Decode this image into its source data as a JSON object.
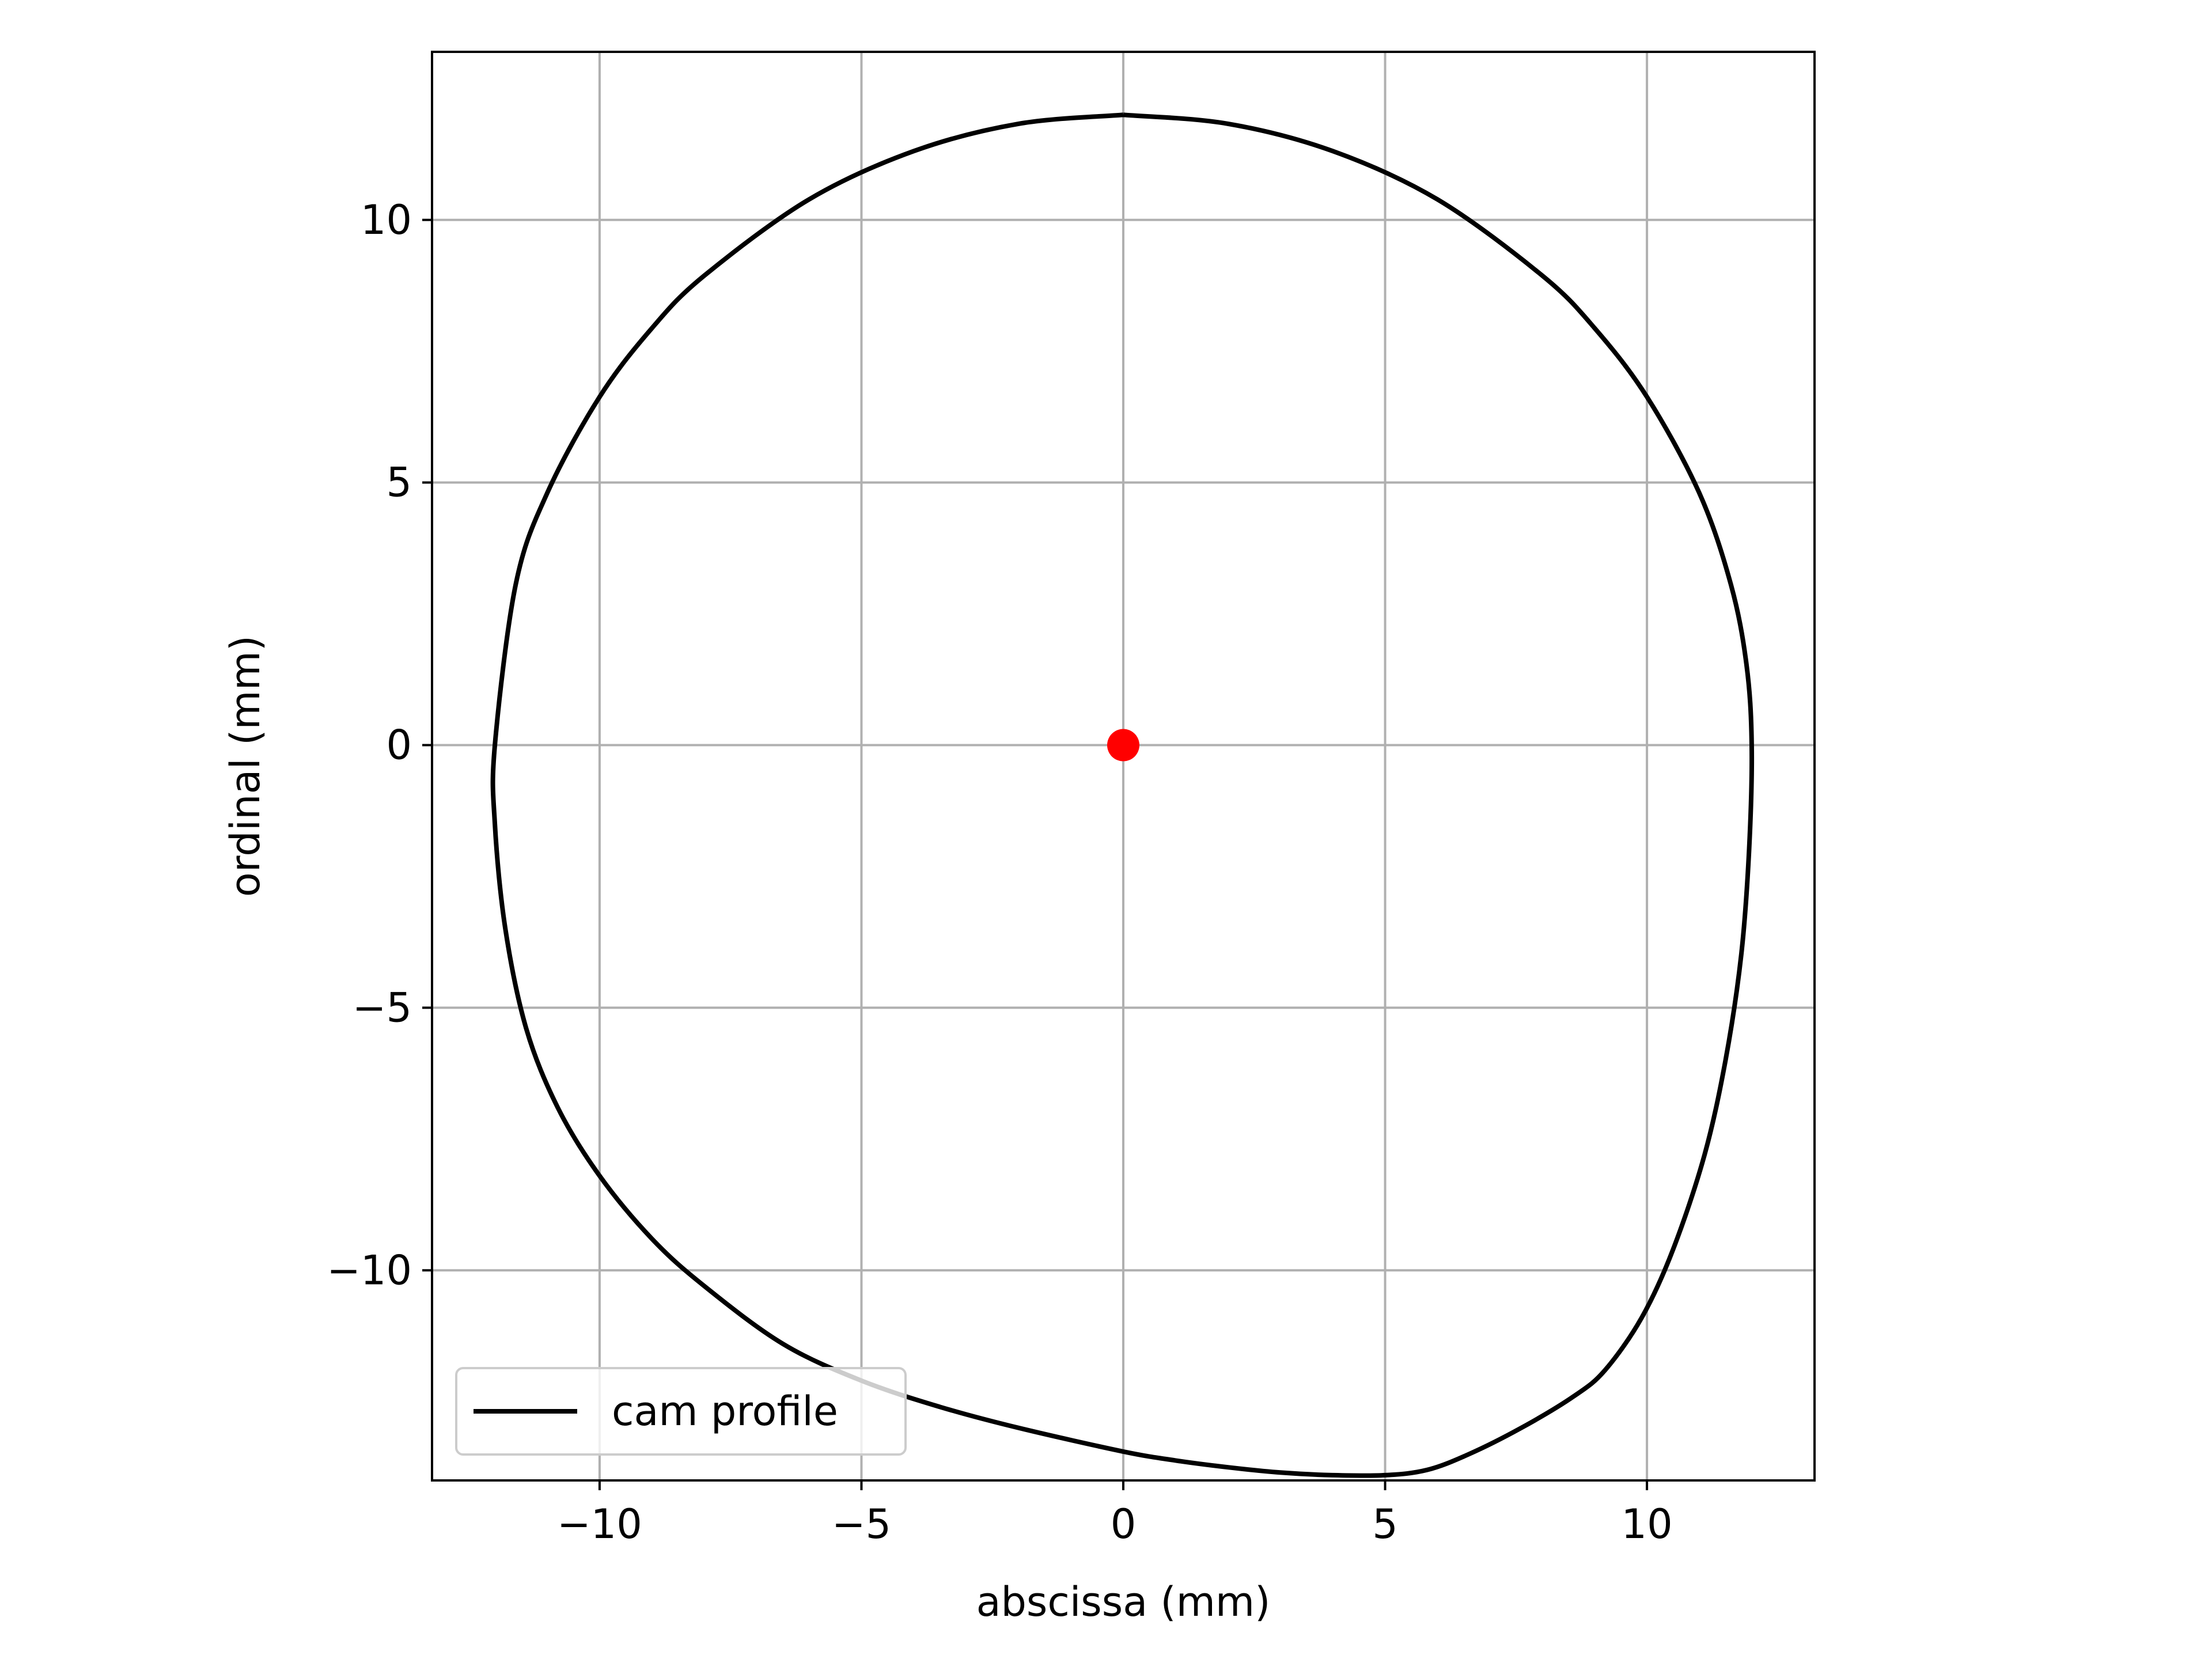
{
  "chart_data": {
    "type": "line",
    "xlabel": "abscissa (mm)",
    "ylabel": "ordinal (mm)",
    "xlim": [
      -13.2,
      13.2
    ],
    "ylim": [
      -14.0,
      13.2
    ],
    "aspect": "equal",
    "grid": true,
    "legend_position": "lower-left",
    "x_ticks": [
      {
        "value": -10,
        "label": "−10"
      },
      {
        "value": -5,
        "label": "−5"
      },
      {
        "value": 0,
        "label": "0"
      },
      {
        "value": 5,
        "label": "5"
      },
      {
        "value": 10,
        "label": "10"
      }
    ],
    "y_ticks": [
      {
        "value": -10,
        "label": "−10"
      },
      {
        "value": -5,
        "label": "−5"
      },
      {
        "value": 0,
        "label": "0"
      },
      {
        "value": 5,
        "label": "5"
      },
      {
        "value": 10,
        "label": "10"
      }
    ],
    "series": [
      {
        "name": "cam profile",
        "color": "#000000",
        "points": [
          [
            0,
            12
          ],
          [
            2,
            11.83
          ],
          [
            4,
            11.31
          ],
          [
            6,
            10.39
          ],
          [
            8,
            8.94
          ],
          [
            9,
            7.94
          ],
          [
            10,
            6.63
          ],
          [
            11,
            4.8
          ],
          [
            11.6,
            3.07
          ],
          [
            11.9,
            1.54
          ],
          [
            12,
            0
          ],
          [
            11.95,
            -2
          ],
          [
            11.8,
            -4
          ],
          [
            11.5,
            -6
          ],
          [
            11.1,
            -7.8
          ],
          [
            10.5,
            -9.6
          ],
          [
            9.9,
            -10.9
          ],
          [
            9.2,
            -11.9
          ],
          [
            8.6,
            -12.4
          ],
          [
            7.6,
            -13.0
          ],
          [
            6.6,
            -13.5
          ],
          [
            5.8,
            -13.8
          ],
          [
            5.0,
            -13.9
          ],
          [
            4.0,
            -13.9
          ],
          [
            3.0,
            -13.85
          ],
          [
            2.0,
            -13.75
          ],
          [
            1.0,
            -13.62
          ],
          [
            0,
            -13.45
          ],
          [
            -2,
            -13.0
          ],
          [
            -3.5,
            -12.6
          ],
          [
            -5,
            -12.1
          ],
          [
            -6.5,
            -11.4
          ],
          [
            -8,
            -10.3
          ],
          [
            -9,
            -9.4
          ],
          [
            -10,
            -8.2
          ],
          [
            -10.8,
            -6.9
          ],
          [
            -11.4,
            -5.4
          ],
          [
            -11.8,
            -3.5
          ],
          [
            -12,
            -1.5
          ],
          [
            -12,
            0
          ],
          [
            -11.6,
            3.07
          ],
          [
            -11,
            4.8
          ],
          [
            -10,
            6.63
          ],
          [
            -9,
            7.94
          ],
          [
            -8,
            8.94
          ],
          [
            -6,
            10.39
          ],
          [
            -4,
            11.31
          ],
          [
            -2,
            11.83
          ],
          [
            0,
            12
          ]
        ]
      },
      {
        "type": "scatter",
        "color": "#ff0000",
        "points": [
          [
            0,
            0
          ]
        ]
      }
    ],
    "legend": [
      {
        "label": "cam profile",
        "color": "#000000"
      }
    ]
  }
}
